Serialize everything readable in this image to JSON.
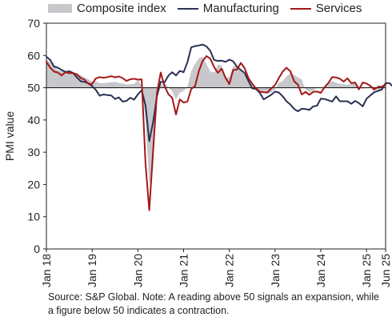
{
  "chart_data": {
    "type": "line",
    "ylabel": "PMI value",
    "ylim": [
      0,
      70
    ],
    "yticks": [
      "0",
      "10",
      "20",
      "30",
      "40",
      "50",
      "60",
      "70"
    ],
    "reference_line": 50,
    "x_tick_labels": [
      "Jan 18",
      "Jan 19",
      "Jan 20",
      "Jan 21",
      "Jan 22",
      "Jan 23",
      "Jan 24",
      "Jan 25",
      "Jun 25"
    ],
    "x_tick_indices": [
      0,
      12,
      24,
      36,
      48,
      60,
      72,
      84,
      89
    ],
    "x_start": "2018-01",
    "x_end": "2025-06",
    "legend_position": "top",
    "series": [
      {
        "name": "Composite index",
        "style": "area",
        "color": "#c8c8cc",
        "values": [
          58.8,
          57.8,
          56.9,
          55.4,
          55.2,
          55.1,
          54.9,
          54.4,
          54.2,
          53.9,
          53.3,
          52.6,
          51.9,
          51.9,
          51.4,
          51.4,
          51.5,
          51.7,
          51.8,
          51.5,
          51.3,
          51.0,
          51.1,
          51.1,
          52.3,
          50.7,
          40.0,
          20.0,
          25.0,
          47.0,
          50.7,
          51.6,
          50.2,
          48.8,
          46.4,
          48.4,
          49.0,
          50.2,
          55.1,
          57.4,
          59.1,
          59.7,
          57.3,
          55.0,
          54.7,
          57.2,
          56.9,
          53.1,
          53.3,
          56.5,
          56.9,
          55.8,
          54.1,
          52.0,
          50.9,
          49.6,
          49.3,
          48.5,
          48.2,
          48.6,
          49.5,
          51.5,
          52.1,
          53.4,
          54.6,
          54.0,
          53.2,
          52.6,
          49.4,
          48.7,
          49.0,
          50.3,
          49.9,
          50.4,
          51.4,
          52.1,
          51.6,
          51.2,
          51.1,
          50.9,
          51.2,
          51.5,
          50.5,
          49.6,
          50.0,
          50.4,
          50.2,
          49.0,
          49.2,
          50.6
        ]
      },
      {
        "name": "Manufacturing",
        "style": "line",
        "color": "#2a3154",
        "values": [
          59.6,
          58.6,
          56.6,
          56.2,
          55.5,
          54.9,
          55.1,
          54.6,
          53.2,
          52.0,
          51.8,
          51.4,
          50.5,
          49.3,
          47.5,
          47.9,
          47.7,
          47.6,
          46.5,
          47.0,
          45.7,
          45.9,
          46.9,
          46.3,
          47.9,
          49.2,
          44.5,
          33.4,
          39.4,
          47.4,
          51.8,
          51.7,
          53.7,
          54.8,
          53.8,
          55.2,
          54.8,
          57.9,
          62.5,
          62.9,
          63.1,
          63.4,
          62.8,
          61.4,
          58.6,
          58.3,
          58.4,
          58.0,
          58.7,
          58.2,
          56.5,
          55.5,
          54.6,
          52.1,
          49.8,
          49.6,
          48.4,
          46.4,
          47.1,
          47.8,
          48.8,
          48.5,
          47.3,
          45.8,
          44.8,
          43.4,
          42.7,
          43.5,
          43.4,
          43.1,
          44.2,
          44.4,
          46.6,
          46.5,
          46.1,
          45.7,
          47.3,
          45.8,
          45.8,
          45.8,
          45.0,
          45.9,
          45.2,
          44.2,
          46.6,
          47.6,
          48.6,
          49.0,
          49.4,
          51.4,
          51.4,
          50.3
        ]
      },
      {
        "name": "Services",
        "style": "line",
        "color": "#a51717",
        "values": [
          58.0,
          56.2,
          55.0,
          54.7,
          53.8,
          54.8,
          54.5,
          54.5,
          54.2,
          53.0,
          52.5,
          51.2,
          51.2,
          52.9,
          53.3,
          53.1,
          53.3,
          53.6,
          53.2,
          53.5,
          53.0,
          52.1,
          52.6,
          52.8,
          52.5,
          52.6,
          26.4,
          12.0,
          30.5,
          48.3,
          54.7,
          50.5,
          48.0,
          46.9,
          41.7,
          46.4,
          45.4,
          45.7,
          49.6,
          50.5,
          55.2,
          58.3,
          59.8,
          59.0,
          56.4,
          54.6,
          55.9,
          53.1,
          51.1,
          55.5,
          55.6,
          57.7,
          56.1,
          53.0,
          51.2,
          49.8,
          48.8,
          48.6,
          48.5,
          49.8,
          50.8,
          53.0,
          55.0,
          56.2,
          55.1,
          52.0,
          50.9,
          47.9,
          48.7,
          47.8,
          48.7,
          48.8,
          48.4,
          50.2,
          51.5,
          53.3,
          53.2,
          52.8,
          51.9,
          52.9,
          51.4,
          51.6,
          49.5,
          51.6,
          51.3,
          50.6,
          49.4,
          50.3,
          50.3,
          51.0
        ]
      }
    ]
  },
  "legend": {
    "composite_label": "Composite index",
    "manufacturing_label": "Manufacturing",
    "services_label": "Services",
    "composite_color": "#c8c8cc",
    "manufacturing_color": "#2a3154",
    "services_color": "#a51717"
  },
  "source": {
    "text": "Source: S&P Global. Note: A reading above 50 signals an expansion, while a figure below 50 indicates a contraction."
  }
}
